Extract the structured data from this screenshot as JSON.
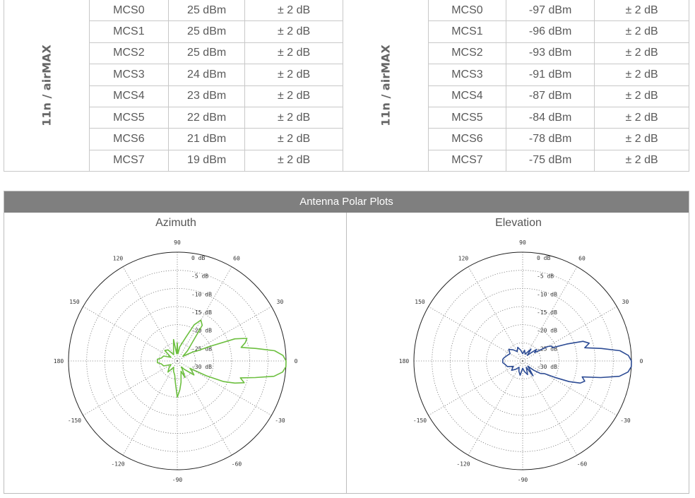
{
  "tx_table": {
    "group_label": "11n / airMAX",
    "rows": [
      {
        "mcs": "MCS0",
        "value": "25 dBm",
        "tolerance": "± 2 dB"
      },
      {
        "mcs": "MCS1",
        "value": "25 dBm",
        "tolerance": "± 2 dB"
      },
      {
        "mcs": "MCS2",
        "value": "25 dBm",
        "tolerance": "± 2 dB"
      },
      {
        "mcs": "MCS3",
        "value": "24 dBm",
        "tolerance": "± 2 dB"
      },
      {
        "mcs": "MCS4",
        "value": "23 dBm",
        "tolerance": "± 2 dB"
      },
      {
        "mcs": "MCS5",
        "value": "22 dBm",
        "tolerance": "± 2 dB"
      },
      {
        "mcs": "MCS6",
        "value": "21 dBm",
        "tolerance": "± 2 dB"
      },
      {
        "mcs": "MCS7",
        "value": "19 dBm",
        "tolerance": "± 2 dB"
      }
    ]
  },
  "rx_table": {
    "group_label": "11n / airMAX",
    "rows": [
      {
        "mcs": "MCS0",
        "value": "-97 dBm",
        "tolerance": "± 2 dB"
      },
      {
        "mcs": "MCS1",
        "value": "-96 dBm",
        "tolerance": "± 2 dB"
      },
      {
        "mcs": "MCS2",
        "value": "-93 dBm",
        "tolerance": "± 2 dB"
      },
      {
        "mcs": "MCS3",
        "value": "-91 dBm",
        "tolerance": "± 2 dB"
      },
      {
        "mcs": "MCS4",
        "value": "-87 dBm",
        "tolerance": "± 2 dB"
      },
      {
        "mcs": "MCS5",
        "value": "-84 dBm",
        "tolerance": "± 2 dB"
      },
      {
        "mcs": "MCS6",
        "value": "-78 dBm",
        "tolerance": "± 2 dB"
      },
      {
        "mcs": "MCS7",
        "value": "-75 dBm",
        "tolerance": "± 2 dB"
      }
    ]
  },
  "plots_header": "Antenna Polar Plots",
  "chart_data": [
    {
      "type": "polar",
      "title": "Azimuth",
      "color": "#6cbf3f",
      "angle_ticks": [
        "0",
        "30",
        "60",
        "90",
        "120",
        "150",
        "180",
        "-150",
        "-120",
        "-90",
        "-60",
        "-30"
      ],
      "angle_tick_values": [
        0,
        30,
        60,
        90,
        120,
        150,
        180,
        -150,
        -120,
        -90,
        -60,
        -30
      ],
      "radial_ticks": [
        "0 dB",
        "-5 dB",
        "-10 dB",
        "-15 dB",
        "-20 dB",
        "-25 dB",
        "-30 dB"
      ],
      "radial_range_db": [
        -30,
        0
      ],
      "grid": true,
      "angles_deg": [
        0,
        3,
        6,
        9,
        12,
        15,
        18,
        21,
        24,
        27,
        30,
        35,
        40,
        45,
        50,
        55,
        60,
        65,
        70,
        75,
        80,
        85,
        90,
        95,
        100,
        110,
        120,
        130,
        140,
        150,
        160,
        170,
        175,
        180,
        185,
        190,
        200,
        210,
        220,
        230,
        240,
        250,
        260,
        265,
        270,
        275,
        280,
        285,
        290,
        295,
        300,
        305,
        310,
        315,
        320,
        325,
        330,
        333,
        336,
        339,
        342,
        345,
        348,
        351,
        354,
        357
      ],
      "gain_db": [
        0,
        -0.8,
        -3,
        -8,
        -12,
        -10.6,
        -9.8,
        -13,
        -20,
        -24,
        -25,
        -27,
        -28,
        -26,
        -24,
        -18,
        -17,
        -19,
        -23,
        -25,
        -26,
        -28,
        -25,
        -28,
        -24,
        -27,
        -28,
        -26,
        -25.5,
        -28,
        -26,
        -25.5,
        -24.5,
        -24.5,
        -24.5,
        -25.5,
        -26,
        -28,
        -27,
        -26,
        -28,
        -27,
        -26,
        -24,
        -20,
        -22,
        -24,
        -26,
        -27,
        -25,
        -27,
        -28,
        -27,
        -26,
        -24,
        -25,
        -26,
        -21,
        -16,
        -13,
        -10.6,
        -12,
        -8,
        -3,
        -0.8,
        0
      ]
    },
    {
      "type": "polar",
      "title": "Elevation",
      "color": "#2c4b94",
      "angle_ticks": [
        "0",
        "30",
        "60",
        "90",
        "120",
        "150",
        "180",
        "-150",
        "-120",
        "-90",
        "-60",
        "-30"
      ],
      "angle_tick_values": [
        0,
        30,
        60,
        90,
        120,
        150,
        180,
        -150,
        -120,
        -90,
        -60,
        -30
      ],
      "radial_ticks": [
        "0 dB",
        "-5 dB",
        "-10 dB",
        "-15 dB",
        "-20 dB",
        "-25 dB",
        "-30 dB"
      ],
      "radial_range_db": [
        -30,
        0
      ],
      "grid": true,
      "angles_deg": [
        0,
        3,
        6,
        9,
        12,
        15,
        18,
        21,
        24,
        27,
        30,
        35,
        40,
        45,
        50,
        55,
        60,
        70,
        80,
        90,
        100,
        110,
        120,
        130,
        140,
        150,
        160,
        170,
        175,
        180,
        185,
        190,
        200,
        210,
        220,
        230,
        240,
        250,
        260,
        270,
        280,
        290,
        300,
        305,
        310,
        315,
        320,
        325,
        330,
        333,
        336,
        339,
        342,
        345,
        348,
        351,
        354,
        357
      ],
      "gain_db": [
        0,
        -0.8,
        -3,
        -8,
        -12.5,
        -11,
        -12.5,
        -17,
        -21,
        -21,
        -22,
        -26,
        -25,
        -27,
        -28,
        -26,
        -27,
        -28,
        -27,
        -28,
        -27,
        -26,
        -27,
        -26,
        -25,
        -26,
        -25.5,
        -24.8,
        -24.5,
        -24.5,
        -24.5,
        -25,
        -25.5,
        -27,
        -26,
        -27,
        -28,
        -27,
        -26,
        -28,
        -27,
        -26,
        -28,
        -25,
        -27,
        -28,
        -26,
        -24,
        -23,
        -20,
        -16,
        -13,
        -12,
        -13,
        -8,
        -3,
        -0.8,
        0
      ]
    }
  ]
}
